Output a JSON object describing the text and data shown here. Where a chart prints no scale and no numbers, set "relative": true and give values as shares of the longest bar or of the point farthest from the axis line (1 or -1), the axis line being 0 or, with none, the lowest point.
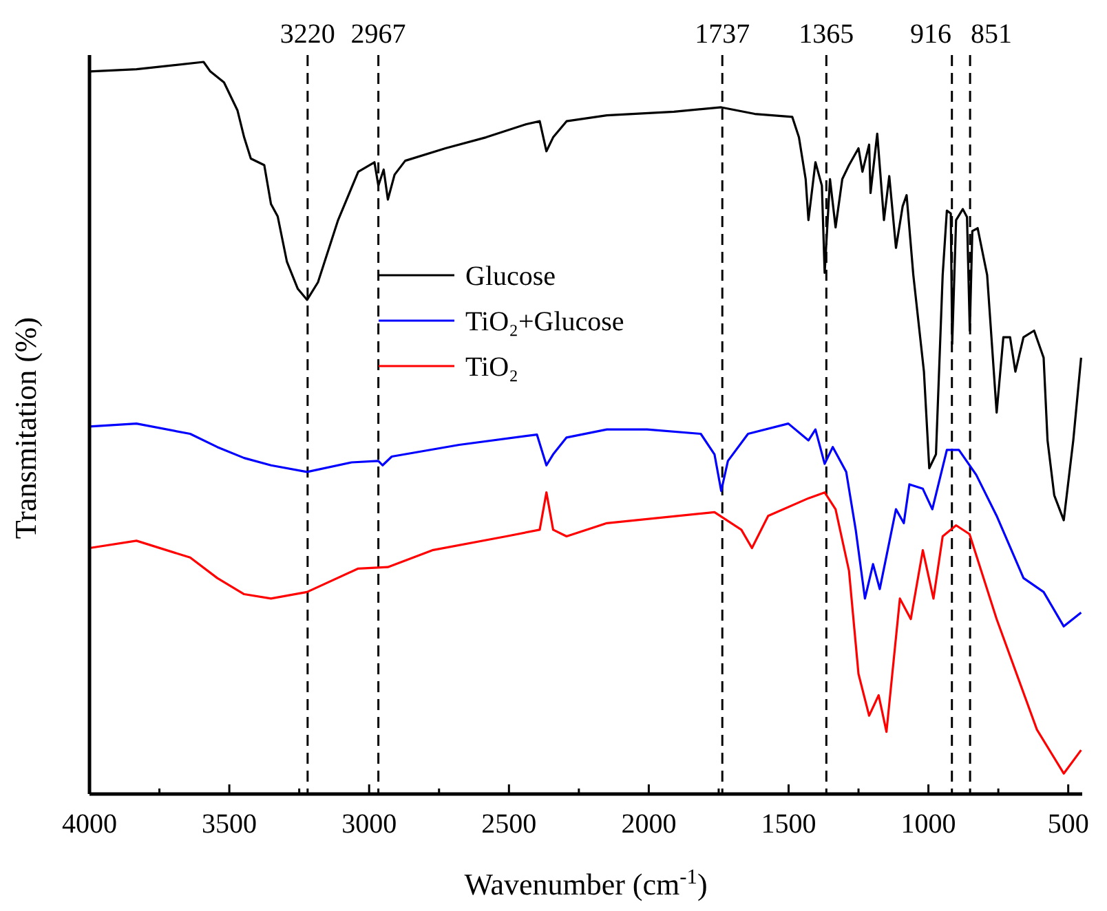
{
  "chart_data": {
    "type": "line",
    "relative": true,
    "xlabel": "Wavenumber (cm$^{-1}$)",
    "ylabel": "Transmitation (%)",
    "xlim": [
      4000,
      450
    ],
    "xticks": [
      4000,
      {
        "value": 3750,
        "label": null
      },
      3500,
      {
        "value": 3250,
        "label": null
      },
      3000,
      {
        "value": 2750,
        "label": null
      },
      2500,
      {
        "value": 2250,
        "label": null
      },
      2000,
      {
        "value": 1750,
        "label": null
      },
      1500,
      {
        "value": 1250,
        "label": null
      },
      1000,
      {
        "value": 750,
        "label": null
      },
      500
    ],
    "legend": "top",
    "line_style": "solid",
    "marker": "none",
    "ref_lines": [
      {
        "axis": "x",
        "value": 3220,
        "label": "3220",
        "line_style": "dashed",
        "color": "#000000"
      },
      {
        "axis": "x",
        "value": 2967,
        "label": "2967",
        "line_style": "dashed",
        "color": "#000000"
      },
      {
        "axis": "x",
        "value": 1737,
        "label": "1737",
        "line_style": "dashed",
        "color": "#000000"
      },
      {
        "axis": "x",
        "value": 1365,
        "label": "1365",
        "line_style": "dashed",
        "color": "#000000"
      },
      {
        "axis": "x",
        "value": 916,
        "label": "916",
        "line_style": "dashed",
        "color": "#000000"
      },
      {
        "axis": "x",
        "value": 851,
        "label": "851",
        "line_style": "dashed",
        "color": "#000000"
      }
    ],
    "series": [
      {
        "name": "Glucose",
        "color": "#000000",
        "x": [
          4000,
          3832,
          3592,
          3568,
          3519,
          3471,
          3447,
          3423,
          3375,
          3351,
          3327,
          3294,
          3255,
          3222,
          3183,
          3111,
          3039,
          2981,
          2967,
          2948,
          2933,
          2909,
          2871,
          2727,
          2582,
          2438,
          2390,
          2366,
          2342,
          2294,
          2150,
          1910,
          1741,
          1621,
          1487,
          1463,
          1439,
          1429,
          1404,
          1381,
          1371,
          1352,
          1332,
          1308,
          1284,
          1250,
          1236,
          1212,
          1207,
          1183,
          1159,
          1140,
          1116,
          1092,
          1078,
          1054,
          1016,
          997,
          973,
          949,
          934,
          920,
          915,
          901,
          877,
          862,
          852,
          843,
          824,
          790,
          756,
          732,
          708,
          689,
          660,
          622,
          588,
          574,
          550,
          516,
          482,
          454
        ],
        "values": [
          0.987,
          0.99,
          1.0,
          0.987,
          0.972,
          0.934,
          0.897,
          0.868,
          0.859,
          0.806,
          0.789,
          0.727,
          0.69,
          0.675,
          0.699,
          0.784,
          0.85,
          0.863,
          0.831,
          0.853,
          0.812,
          0.846,
          0.865,
          0.882,
          0.897,
          0.915,
          0.919,
          0.878,
          0.897,
          0.919,
          0.927,
          0.932,
          0.938,
          0.929,
          0.925,
          0.897,
          0.84,
          0.784,
          0.863,
          0.831,
          0.712,
          0.84,
          0.774,
          0.84,
          0.859,
          0.882,
          0.85,
          0.887,
          0.821,
          0.902,
          0.784,
          0.844,
          0.746,
          0.803,
          0.818,
          0.709,
          0.577,
          0.445,
          0.464,
          0.709,
          0.797,
          0.793,
          0.615,
          0.784,
          0.799,
          0.788,
          0.633,
          0.769,
          0.773,
          0.709,
          0.521,
          0.624,
          0.624,
          0.577,
          0.624,
          0.633,
          0.596,
          0.483,
          0.408,
          0.374,
          0.483,
          0.596
        ]
      },
      {
        "name": "TiO₂+Glucose",
        "color": "#0000ff",
        "x": [
          4000,
          3832,
          3640,
          3543,
          3447,
          3351,
          3222,
          3063,
          2967,
          2952,
          2919,
          2678,
          2400,
          2366,
          2342,
          2294,
          2150,
          2006,
          1814,
          1765,
          1741,
          1717,
          1645,
          1501,
          1429,
          1404,
          1371,
          1342,
          1294,
          1260,
          1227,
          1198,
          1174,
          1116,
          1088,
          1068,
          1020,
          986,
          934,
          891,
          829,
          756,
          660,
          588,
          516,
          454
        ],
        "values": [
          0.502,
          0.506,
          0.492,
          0.474,
          0.459,
          0.449,
          0.44,
          0.453,
          0.455,
          0.449,
          0.461,
          0.477,
          0.491,
          0.449,
          0.464,
          0.487,
          0.498,
          0.498,
          0.492,
          0.464,
          0.414,
          0.455,
          0.492,
          0.506,
          0.483,
          0.498,
          0.451,
          0.474,
          0.44,
          0.361,
          0.267,
          0.314,
          0.28,
          0.389,
          0.37,
          0.423,
          0.417,
          0.389,
          0.47,
          0.47,
          0.436,
          0.38,
          0.295,
          0.276,
          0.229,
          0.248
        ]
      },
      {
        "name": "TiO₂",
        "color": "#ff0000",
        "x": [
          4000,
          3832,
          3640,
          3543,
          3447,
          3351,
          3222,
          3039,
          2933,
          2774,
          2510,
          2390,
          2366,
          2342,
          2294,
          2150,
          1765,
          1669,
          1631,
          1573,
          1429,
          1371,
          1332,
          1284,
          1250,
          1212,
          1178,
          1150,
          1102,
          1063,
          1020,
          982,
          949,
          901,
          853,
          756,
          675,
          612,
          516,
          454
        ],
        "values": [
          0.336,
          0.346,
          0.323,
          0.295,
          0.273,
          0.267,
          0.276,
          0.308,
          0.31,
          0.333,
          0.352,
          0.361,
          0.412,
          0.361,
          0.352,
          0.37,
          0.385,
          0.361,
          0.336,
          0.38,
          0.404,
          0.412,
          0.389,
          0.305,
          0.164,
          0.107,
          0.135,
          0.085,
          0.267,
          0.239,
          0.333,
          0.267,
          0.352,
          0.367,
          0.355,
          0.239,
          0.154,
          0.088,
          0.028,
          0.06
        ]
      }
    ]
  }
}
